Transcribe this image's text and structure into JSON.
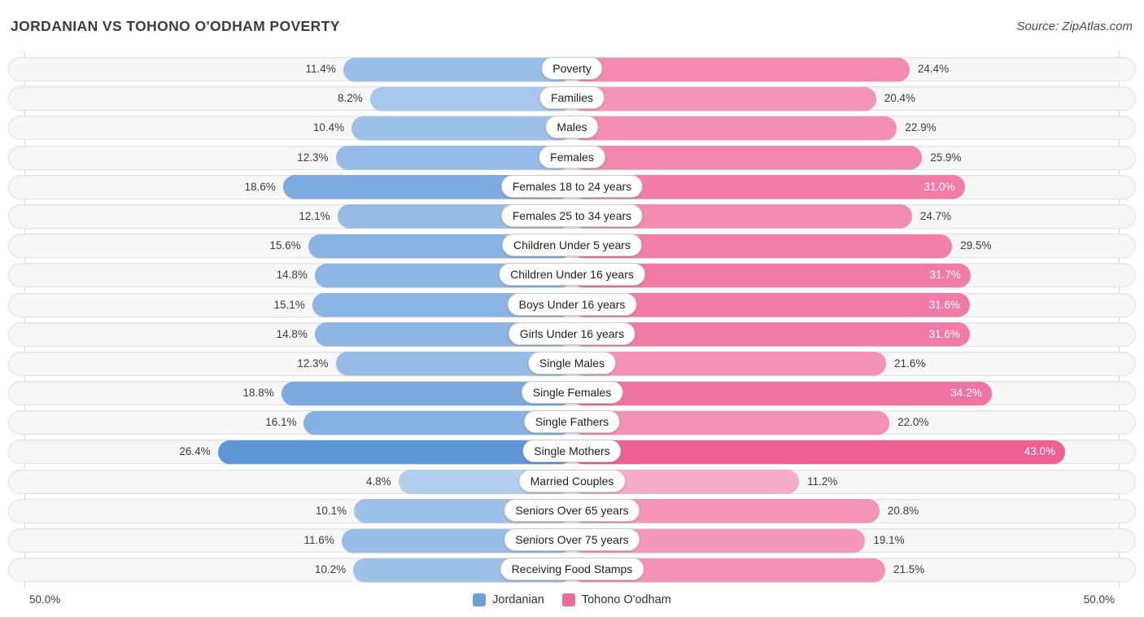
{
  "header": {
    "title": "JORDANIAN VS TOHONO O'ODHAM POVERTY",
    "source": "Source: ZipAtlas.com"
  },
  "axis": {
    "left_label": "50.0%",
    "right_label": "50.0%"
  },
  "legend": [
    {
      "name": "Jordanian",
      "color": "#6ca0d8"
    },
    {
      "name": "Tohono O'odham",
      "color": "#f0679c"
    }
  ],
  "colors": {
    "blue_light": "#b3cfee",
    "blue_dark": "#5e96d7",
    "pink_light": "#f6abc6",
    "pink_dark": "#ee5f94",
    "track_bg": "#f7f7f8",
    "track_border": "#e2e2e4"
  },
  "chart_data": {
    "type": "bar",
    "variant": "bidirectional-tornado",
    "title": "JORDANIAN VS TOHONO O'ODHAM POVERTY",
    "categories": [
      "Poverty",
      "Families",
      "Males",
      "Females",
      "Females 18 to 24 years",
      "Females 25 to 34 years",
      "Children Under 5 years",
      "Children Under 16 years",
      "Boys Under 16 years",
      "Girls Under 16 years",
      "Single Males",
      "Single Females",
      "Single Fathers",
      "Single Mothers",
      "Married Couples",
      "Seniors Over 65 years",
      "Seniors Over 75 years",
      "Receiving Food Stamps"
    ],
    "series": [
      {
        "name": "Jordanian",
        "side": "left",
        "values": [
          11.4,
          8.2,
          10.4,
          12.3,
          18.6,
          12.1,
          15.6,
          14.8,
          15.1,
          14.8,
          12.3,
          18.8,
          16.1,
          26.4,
          4.8,
          10.1,
          11.6,
          10.2
        ]
      },
      {
        "name": "Tohono O'odham",
        "side": "right",
        "values": [
          24.4,
          20.4,
          22.9,
          25.9,
          31.0,
          24.7,
          29.5,
          31.7,
          31.6,
          31.6,
          21.6,
          34.2,
          22.0,
          43.0,
          11.2,
          20.8,
          19.1,
          21.5
        ]
      }
    ],
    "xlim": [
      -50,
      50
    ],
    "axis_labels": [
      "50.0%",
      "50.0%"
    ],
    "value_format": "percent_one_decimal",
    "grid": "edge-gridlines",
    "legend_position": "bottom-center"
  }
}
